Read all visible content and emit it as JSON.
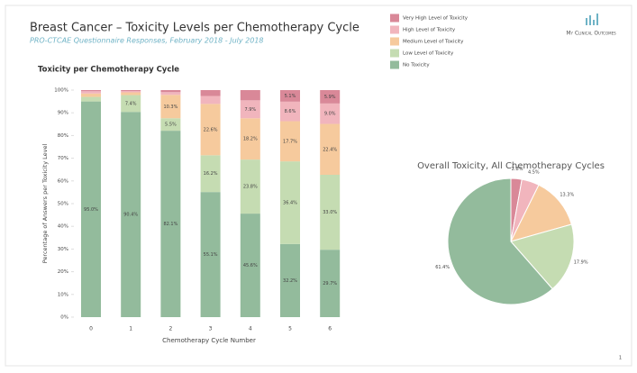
{
  "header": {
    "title": "Breast Cancer – Toxicity Levels per Chemotherapy Cycle",
    "subtitle": "PRO-CTCAE Questionnaire Responses, February 2018 - July 2018",
    "logo": "My Clinical Outcomes",
    "page_number": "1"
  },
  "chart_data": [
    {
      "type": "stacked_bar",
      "title": "Toxicity per Chemotherapy Cycle",
      "x_label": "Chemotherapy Cycle Number",
      "y_label": "Percentage of Answers per Toxicity Level",
      "categories": [
        "0",
        "1",
        "2",
        "3",
        "4",
        "5",
        "6"
      ],
      "series": [
        {
          "name": "No Toxicity",
          "color": "#93bb9c",
          "values": [
            95.0,
            90.4,
            82.1,
            55.1,
            45.6,
            32.2,
            29.7
          ],
          "value_labels": [
            "95.0%",
            "90.4%",
            "82.1%",
            "55.1%",
            "45.6%",
            "32.2%",
            "29.7%"
          ]
        },
        {
          "name": "Low Level of Toxicity",
          "color": "#c5dcb2",
          "values": [
            2.0,
            7.4,
            5.5,
            16.2,
            23.8,
            36.4,
            33.0
          ],
          "value_labels": [
            null,
            "7.4%",
            "5.5%",
            "16.2%",
            "23.8%",
            "36.4%",
            "33.0%"
          ]
        },
        {
          "name": "Medium Level of Toxicity",
          "color": "#f6ca9d",
          "values": [
            1.5,
            1.2,
            10.3,
            22.6,
            18.2,
            17.7,
            22.4
          ],
          "value_labels": [
            null,
            null,
            "10.3%",
            "22.6%",
            "18.2%",
            "17.7%",
            "22.4%"
          ]
        },
        {
          "name": "High Level of Toxicity",
          "color": "#f1b5bd",
          "values": [
            1.0,
            0.6,
            1.2,
            3.5,
            7.9,
            8.6,
            9.0
          ],
          "value_labels": [
            null,
            null,
            null,
            null,
            "7.9%",
            "8.6%",
            "9.0%"
          ]
        },
        {
          "name": "Very High Level of Toxicity",
          "color": "#d98898",
          "values": [
            0.5,
            0.4,
            0.9,
            2.6,
            4.5,
            5.1,
            5.9
          ],
          "value_labels": [
            null,
            null,
            null,
            null,
            null,
            "5.1%",
            "5.9%"
          ]
        }
      ],
      "ylim": [
        0,
        100
      ],
      "yticks": [
        {
          "value": 0,
          "label": "0%"
        },
        {
          "value": 10,
          "label": "10%"
        },
        {
          "value": 20,
          "label": "20%"
        },
        {
          "value": 30,
          "label": "30%"
        },
        {
          "value": 40,
          "label": "40%"
        },
        {
          "value": 50,
          "label": "50%"
        },
        {
          "value": 60,
          "label": "60%"
        },
        {
          "value": 70,
          "label": "70%"
        },
        {
          "value": 80,
          "label": "80%"
        },
        {
          "value": 90,
          "label": "90%"
        },
        {
          "value": 100,
          "label": "100%"
        }
      ],
      "legend": "top-right"
    },
    {
      "type": "pie",
      "title": "Overall Toxicity, All Chemotherapy Cycles",
      "values": [
        2.8,
        4.5,
        13.3,
        17.9,
        61.4
      ],
      "value_labels": [
        "2.8%",
        "4.5%",
        "13.3%",
        "17.9%",
        "61.4%"
      ],
      "colors": [
        "#d98898",
        "#f1b5bd",
        "#f6ca9d",
        "#c5dcb2",
        "#93bb9c"
      ]
    }
  ]
}
